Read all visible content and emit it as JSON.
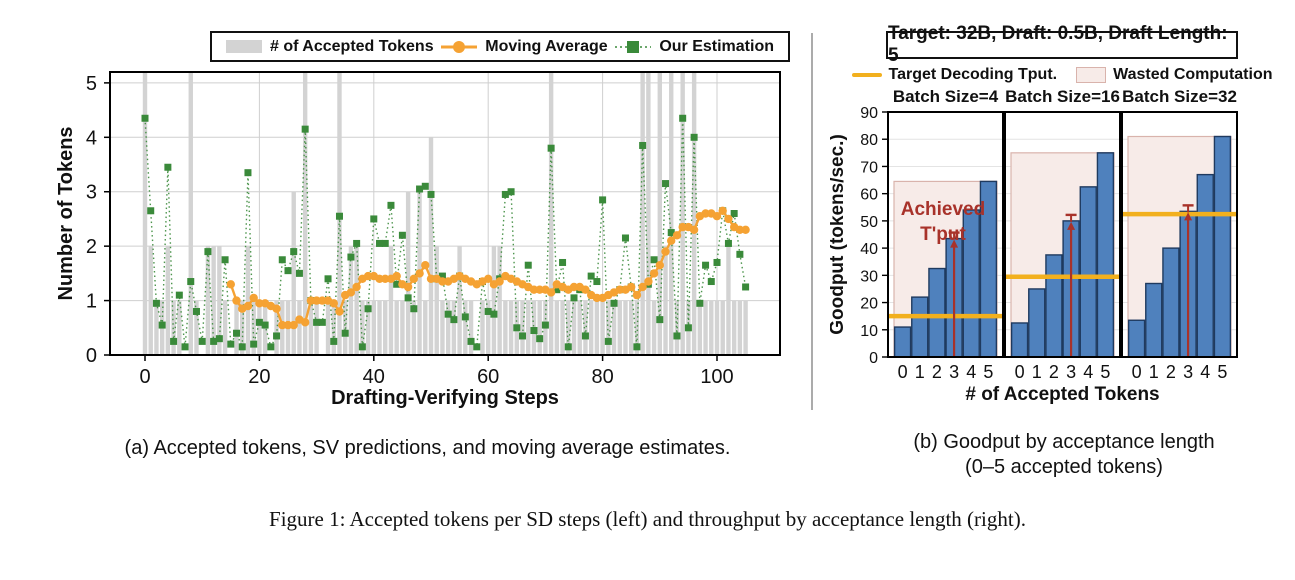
{
  "colors": {
    "accepted_bar": "#d3d3d3",
    "moving_average": "#f5a233",
    "estimation": "#3a8a3a",
    "goodput_bar": "#4f81bd",
    "goodput_bar_border": "#1f3a5f",
    "target_line": "#f2b01e",
    "wasted_fill": "#f7ebe8",
    "wasted_border": "#d9b3ac",
    "achieved_red": "#a8322a",
    "grid": "#cfcfcf",
    "frame": "#000000"
  },
  "left_chart": {
    "legend": {
      "bars": "# of Accepted Tokens",
      "ma": "Moving Average",
      "est": "Our Estimation"
    },
    "caption": "(a) Accepted tokens, SV predictions, and moving average estimates."
  },
  "right_chart": {
    "title": "Target: 32B, Draft: 0.5B, Draft Length: 5",
    "legend": {
      "target": "Target Decoding Tput.",
      "wasted": "Wasted Computation"
    },
    "caption_line1": "(b) Goodput by acceptance length",
    "caption_line2": "(0–5 accepted tokens)"
  },
  "figure_caption": "Figure 1: Accepted tokens per SD steps (left) and throughput by acceptance length (right).",
  "chart_data": [
    {
      "type": "bar",
      "title": "",
      "xlabel": "Drafting-Verifying Steps",
      "ylabel": "Number of Tokens",
      "xticks": [
        0,
        20,
        40,
        60,
        80,
        100
      ],
      "yticks": [
        0,
        1,
        2,
        3,
        4,
        5
      ],
      "xlim": [
        -6,
        111
      ],
      "ylim": [
        0,
        5.2
      ],
      "grid": true,
      "legend_position": "top-center",
      "series": [
        {
          "name": "# of Accepted Tokens",
          "type": "bar",
          "color": "#d3d3d3",
          "x_start": 0,
          "values": [
            5,
            2,
            1,
            1,
            2,
            1,
            1,
            0,
            5,
            1,
            0,
            2,
            2,
            2,
            1,
            0,
            1,
            1,
            2,
            1,
            1,
            1,
            0,
            1,
            1,
            1,
            3,
            1,
            5,
            1,
            1,
            0,
            1,
            1,
            5,
            1,
            2,
            2,
            1,
            1,
            1,
            1,
            1,
            2,
            1,
            1,
            3,
            1,
            3,
            1,
            4,
            2,
            1,
            1,
            1,
            2,
            1,
            1,
            0,
            1,
            1,
            2,
            2,
            1,
            1,
            1,
            1,
            1,
            1,
            1,
            1,
            5,
            1,
            1,
            1,
            1,
            1,
            1,
            1,
            1,
            1,
            1,
            1,
            1,
            1,
            1,
            1,
            5,
            5,
            1,
            5,
            2,
            5,
            1,
            5,
            1,
            5,
            1,
            1,
            1,
            1,
            1,
            2,
            1,
            1,
            1
          ]
        },
        {
          "name": "Our Estimation",
          "type": "scatter-line",
          "marker": "square",
          "line_style": "dotted",
          "color": "#3a8a3a",
          "x_start": 0,
          "values": [
            4.35,
            2.65,
            0.95,
            0.55,
            3.45,
            0.25,
            1.1,
            0.15,
            1.35,
            0.8,
            0.25,
            1.9,
            0.25,
            0.3,
            1.75,
            0.2,
            0.4,
            0.15,
            3.35,
            0.2,
            0.6,
            0.55,
            0.15,
            0.35,
            1.75,
            1.55,
            1.9,
            1.5,
            4.15,
            1.0,
            0.6,
            0.6,
            1.4,
            0.25,
            2.55,
            0.4,
            1.8,
            2.05,
            0.15,
            0.85,
            2.5,
            2.05,
            2.05,
            2.75,
            1.3,
            2.2,
            1.05,
            0.85,
            3.05,
            3.1,
            2.95,
            1.4,
            1.45,
            0.75,
            0.65,
            1.45,
            0.7,
            0.25,
            0.15,
            1.35,
            0.8,
            0.75,
            1.4,
            2.95,
            3.0,
            0.5,
            0.35,
            1.65,
            0.45,
            0.3,
            0.55,
            3.8,
            1.2,
            1.7,
            0.15,
            1.05,
            1.2,
            0.35,
            1.45,
            1.35,
            2.85,
            0.25,
            0.95,
            1.2,
            2.15,
            1.25,
            0.15,
            3.85,
            1.3,
            1.75,
            0.65,
            3.15,
            2.25,
            0.35,
            4.35,
            0.5,
            4.0,
            0.95,
            1.65,
            1.35,
            1.7,
            2.65,
            2.05,
            2.6,
            1.85,
            1.25
          ]
        },
        {
          "name": "Moving Average",
          "type": "line",
          "marker": "circle",
          "color": "#f5a233",
          "x_start": 15,
          "values": [
            1.3,
            1.0,
            0.85,
            0.9,
            1.05,
            0.95,
            0.95,
            0.9,
            0.85,
            0.55,
            0.55,
            0.55,
            0.65,
            0.6,
            1.0,
            1.0,
            1.0,
            1.0,
            0.95,
            0.8,
            1.1,
            1.15,
            1.25,
            1.4,
            1.45,
            1.45,
            1.4,
            1.4,
            1.4,
            1.45,
            1.3,
            1.25,
            1.4,
            1.5,
            1.65,
            1.4,
            1.4,
            1.35,
            1.35,
            1.4,
            1.45,
            1.4,
            1.35,
            1.3,
            1.35,
            1.4,
            1.3,
            1.35,
            1.45,
            1.4,
            1.35,
            1.3,
            1.25,
            1.2,
            1.2,
            1.2,
            1.15,
            1.3,
            1.25,
            1.2,
            1.25,
            1.25,
            1.2,
            1.1,
            1.05,
            1.05,
            1.1,
            1.15,
            1.2,
            1.2,
            1.25,
            1.1,
            1.25,
            1.35,
            1.5,
            1.65,
            1.9,
            2.1,
            2.2,
            2.35,
            2.35,
            2.3,
            2.55,
            2.6,
            2.6,
            2.55,
            2.65,
            2.5,
            2.35,
            2.3,
            2.3
          ]
        }
      ]
    },
    {
      "type": "bar",
      "title": "Target: 32B, Draft: 0.5B, Draft Length: 5",
      "xlabel": "# of Accepted Tokens",
      "ylabel": "Goodput (tokens/sec.)",
      "categories": [
        0,
        1,
        2,
        3,
        4,
        5
      ],
      "yticks": [
        0,
        10,
        20,
        30,
        40,
        50,
        60,
        70,
        80,
        90
      ],
      "ylim": [
        0,
        90
      ],
      "grid": true,
      "annotation": "Achieved T'put",
      "annotation_line1": "Achieved",
      "annotation_line2": "T'put",
      "panels": [
        {
          "label": "Batch Size=4",
          "values": [
            11,
            22,
            32.5,
            43.5,
            54,
            64.5
          ],
          "target_tput": 15,
          "achieved_tput": 43.5,
          "arrow_at": 3
        },
        {
          "label": "Batch Size=16",
          "values": [
            12.5,
            25,
            37.5,
            50,
            62.5,
            75
          ],
          "target_tput": 29.5,
          "achieved_tput": 50,
          "arrow_at": 3
        },
        {
          "label": "Batch Size=32",
          "values": [
            13.5,
            27,
            40,
            53.5,
            67,
            81
          ],
          "target_tput": 52.5,
          "achieved_tput": 53.5,
          "arrow_at": 3
        }
      ]
    }
  ]
}
